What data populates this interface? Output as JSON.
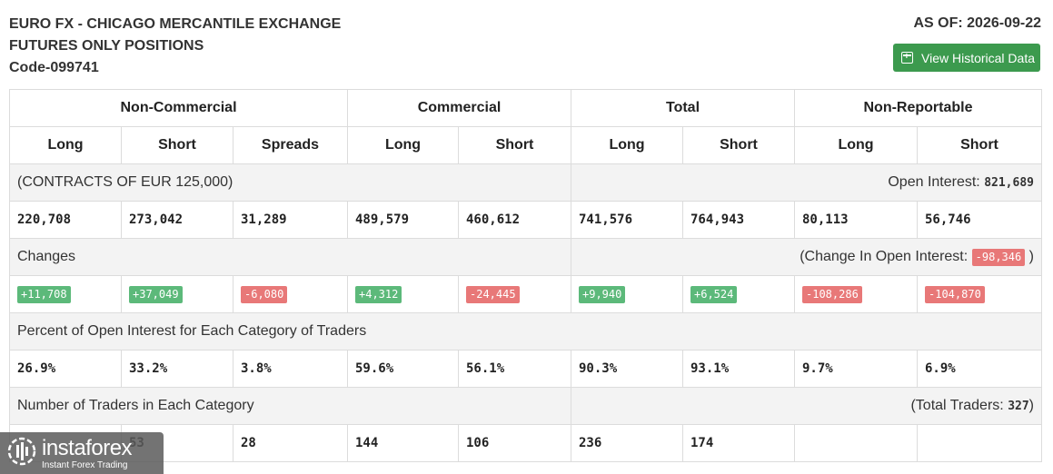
{
  "header": {
    "line1": "EURO FX - CHICAGO MERCANTILE EXCHANGE",
    "line2": "FUTURES ONLY POSITIONS",
    "line3": "Code-099741",
    "as_of": "AS OF: 2026-09-22",
    "history_button": "View Historical Data"
  },
  "groups": [
    "Non-Commercial",
    "Commercial",
    "Total",
    "Non-Reportable"
  ],
  "columns": [
    "Long",
    "Short",
    "Spreads",
    "Long",
    "Short",
    "Long",
    "Short",
    "Long",
    "Short"
  ],
  "contracts": {
    "label": "(CONTRACTS OF EUR 125,000)",
    "oi_label": "Open Interest:",
    "oi_value": "821,689",
    "values": [
      "220,708",
      "273,042",
      "31,289",
      "489,579",
      "460,612",
      "741,576",
      "764,943",
      "80,113",
      "56,746"
    ]
  },
  "changes": {
    "label": "Changes",
    "coi_label": "(Change In Open Interest:",
    "coi_value": "-98,346",
    "coi_close": ")",
    "values": [
      "+11,708",
      "+37,049",
      "-6,080",
      "+4,312",
      "-24,445",
      "+9,940",
      "+6,524",
      "-108,286",
      "-104,870"
    ]
  },
  "percent": {
    "label": "Percent of Open Interest for Each Category of Traders",
    "values": [
      "26.9%",
      "33.2%",
      "3.8%",
      "59.6%",
      "56.1%",
      "90.3%",
      "93.1%",
      "9.7%",
      "6.9%"
    ]
  },
  "traders": {
    "label": "Number of Traders in Each Category",
    "total_label": "(Total Traders:",
    "total_value": "327",
    "total_close": ")",
    "values": [
      "",
      "53",
      "28",
      "144",
      "106",
      "236",
      "174",
      "",
      ""
    ]
  },
  "logo": {
    "name": "instaforex",
    "tagline": "Instant Forex Trading"
  },
  "colors": {
    "positive": "#5cb97a",
    "negative": "#e87878",
    "button": "#3c9a4e"
  }
}
